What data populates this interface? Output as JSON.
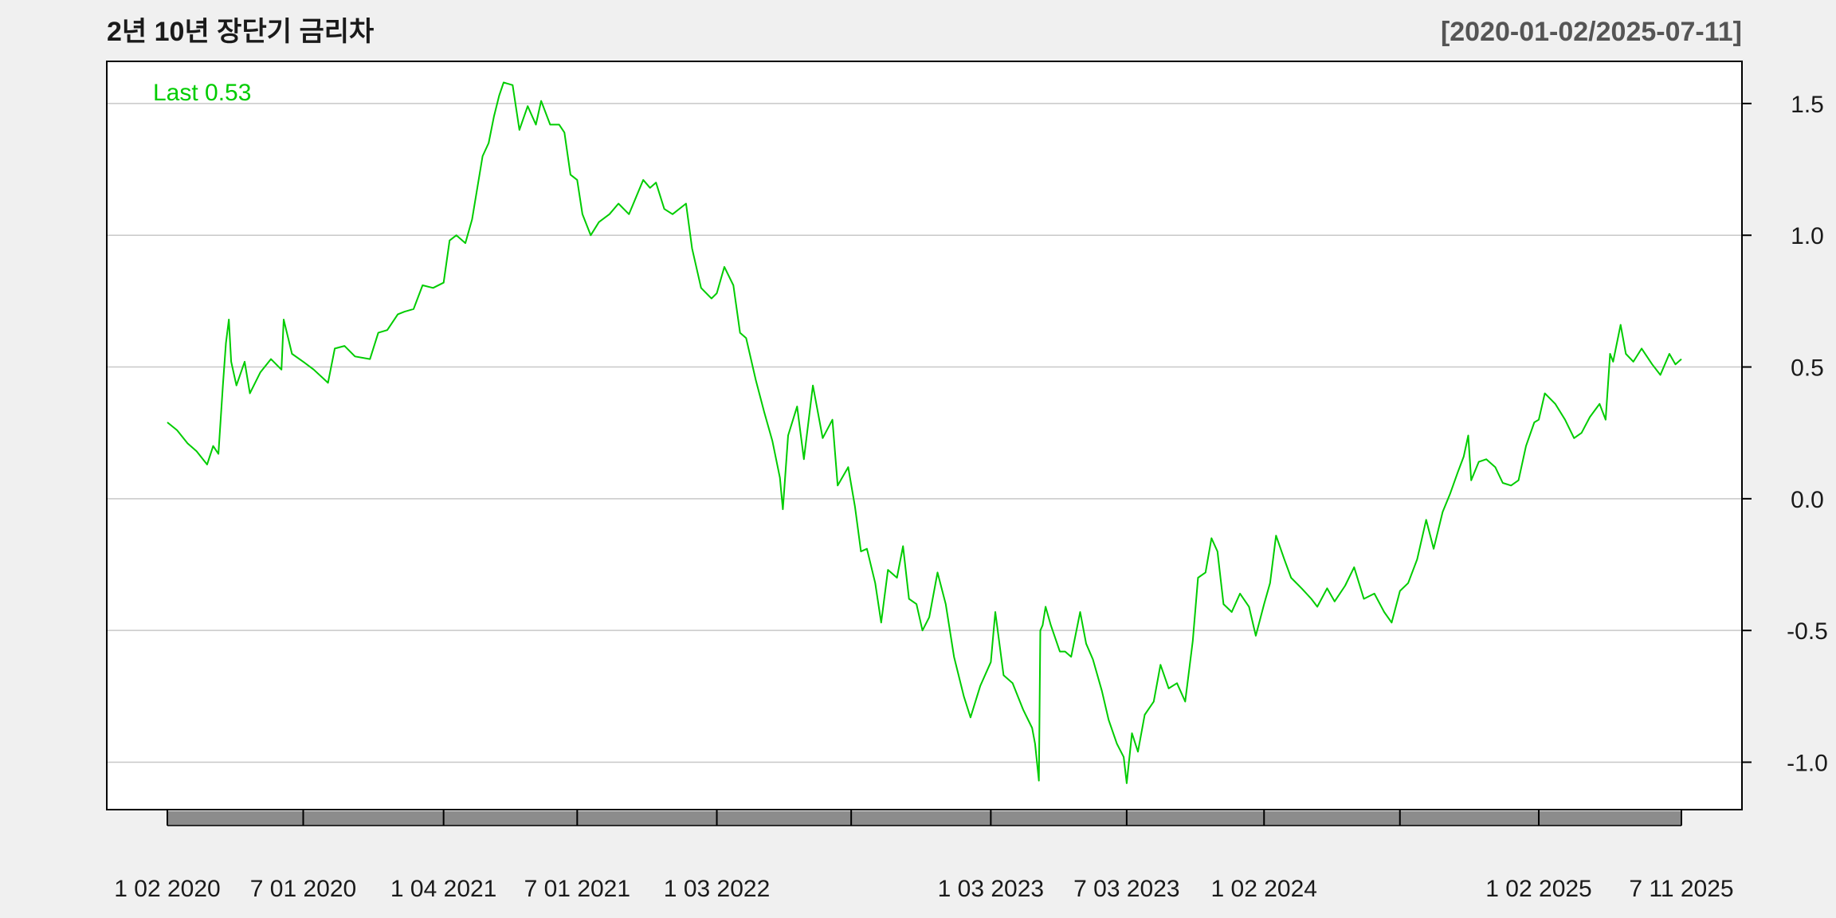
{
  "chart_data": {
    "type": "line",
    "title": "2년 10년 장단기 금리차",
    "date_range_label": "[2020-01-02/2025-07-11]",
    "last_label": "Last 0.53",
    "ylim": [
      -1.18,
      1.66
    ],
    "y_ticks": [
      {
        "value": 1.5,
        "label": "1.5"
      },
      {
        "value": 1.0,
        "label": "1.0"
      },
      {
        "value": 0.5,
        "label": "0.5"
      },
      {
        "value": 0.0,
        "label": "0.0"
      },
      {
        "value": -0.5,
        "label": "-0.5"
      },
      {
        "value": -1.0,
        "label": "-1.0"
      }
    ],
    "grid": true,
    "x_start": "2020-01-02",
    "x_end": "2025-07-11",
    "x_tick_dates": [
      "2020-01-02",
      "2020-07-01",
      "2021-01-04",
      "2021-07-01",
      "2022-01-03",
      "2022-07-01",
      "2023-01-03",
      "2023-07-03",
      "2024-01-02",
      "2024-07-01",
      "2025-01-02",
      "2025-07-11"
    ],
    "x_labels": [
      {
        "date": "2020-01-02",
        "label": "1 02 2020"
      },
      {
        "date": "2020-07-01",
        "label": "7 01 2020"
      },
      {
        "date": "2021-01-04",
        "label": "1 04 2021"
      },
      {
        "date": "2021-07-01",
        "label": "7 01 2021"
      },
      {
        "date": "2022-01-03",
        "label": "1 03 2022"
      },
      {
        "date": "2023-01-03",
        "label": "1 03 2023"
      },
      {
        "date": "2023-07-03",
        "label": "7 03 2023"
      },
      {
        "date": "2024-01-02",
        "label": "1 02 2024"
      },
      {
        "date": "2025-01-02",
        "label": "1 02 2025"
      },
      {
        "date": "2025-07-11",
        "label": "7 11 2025"
      }
    ],
    "colors": {
      "line": "#00cc00",
      "grid": "#c8c8c8",
      "background": "#f0f0f0",
      "plot_background": "#ffffff",
      "axis_band": "#8c8c8c",
      "text": "#1a1a1a",
      "range_text": "#555555"
    },
    "series": [
      {
        "values": [
          [
            "2020-01-02",
            0.29
          ],
          [
            "2020-01-15",
            0.26
          ],
          [
            "2020-01-29",
            0.21
          ],
          [
            "2020-02-10",
            0.18
          ],
          [
            "2020-02-24",
            0.13
          ],
          [
            "2020-03-03",
            0.2
          ],
          [
            "2020-03-10",
            0.17
          ],
          [
            "2020-03-16",
            0.43
          ],
          [
            "2020-03-20",
            0.59
          ],
          [
            "2020-03-24",
            0.68
          ],
          [
            "2020-03-27",
            0.52
          ],
          [
            "2020-04-03",
            0.43
          ],
          [
            "2020-04-14",
            0.52
          ],
          [
            "2020-04-21",
            0.4
          ],
          [
            "2020-05-05",
            0.48
          ],
          [
            "2020-05-19",
            0.53
          ],
          [
            "2020-06-02",
            0.49
          ],
          [
            "2020-06-05",
            0.68
          ],
          [
            "2020-06-16",
            0.55
          ],
          [
            "2020-07-01",
            0.52
          ],
          [
            "2020-07-15",
            0.49
          ],
          [
            "2020-08-03",
            0.44
          ],
          [
            "2020-08-12",
            0.57
          ],
          [
            "2020-08-25",
            0.58
          ],
          [
            "2020-09-08",
            0.54
          ],
          [
            "2020-09-28",
            0.53
          ],
          [
            "2020-10-09",
            0.63
          ],
          [
            "2020-10-21",
            0.64
          ],
          [
            "2020-11-04",
            0.7
          ],
          [
            "2020-11-13",
            0.71
          ],
          [
            "2020-11-25",
            0.72
          ],
          [
            "2020-12-07",
            0.81
          ],
          [
            "2020-12-21",
            0.8
          ],
          [
            "2021-01-04",
            0.82
          ],
          [
            "2021-01-12",
            0.98
          ],
          [
            "2021-01-21",
            1.0
          ],
          [
            "2021-02-02",
            0.97
          ],
          [
            "2021-02-11",
            1.06
          ],
          [
            "2021-02-25",
            1.3
          ],
          [
            "2021-03-05",
            1.35
          ],
          [
            "2021-03-12",
            1.45
          ],
          [
            "2021-03-19",
            1.53
          ],
          [
            "2021-03-25",
            1.58
          ],
          [
            "2021-04-06",
            1.57
          ],
          [
            "2021-04-15",
            1.4
          ],
          [
            "2021-04-26",
            1.49
          ],
          [
            "2021-05-07",
            1.42
          ],
          [
            "2021-05-14",
            1.51
          ],
          [
            "2021-05-26",
            1.42
          ],
          [
            "2021-06-07",
            1.42
          ],
          [
            "2021-06-14",
            1.39
          ],
          [
            "2021-06-22",
            1.23
          ],
          [
            "2021-07-01",
            1.21
          ],
          [
            "2021-07-08",
            1.08
          ],
          [
            "2021-07-19",
            1.0
          ],
          [
            "2021-07-30",
            1.05
          ],
          [
            "2021-08-13",
            1.08
          ],
          [
            "2021-08-25",
            1.12
          ],
          [
            "2021-09-08",
            1.08
          ],
          [
            "2021-09-27",
            1.21
          ],
          [
            "2021-10-06",
            1.18
          ],
          [
            "2021-10-14",
            1.2
          ],
          [
            "2021-10-25",
            1.1
          ],
          [
            "2021-11-05",
            1.08
          ],
          [
            "2021-11-23",
            1.12
          ],
          [
            "2021-12-01",
            0.95
          ],
          [
            "2021-12-13",
            0.8
          ],
          [
            "2021-12-27",
            0.76
          ],
          [
            "2022-01-03",
            0.78
          ],
          [
            "2022-01-13",
            0.88
          ],
          [
            "2022-01-25",
            0.81
          ],
          [
            "2022-02-03",
            0.63
          ],
          [
            "2022-02-11",
            0.61
          ],
          [
            "2022-02-24",
            0.45
          ],
          [
            "2022-03-07",
            0.33
          ],
          [
            "2022-03-18",
            0.22
          ],
          [
            "2022-03-28",
            0.08
          ],
          [
            "2022-04-01",
            -0.04
          ],
          [
            "2022-04-08",
            0.24
          ],
          [
            "2022-04-20",
            0.35
          ],
          [
            "2022-04-29",
            0.15
          ],
          [
            "2022-05-11",
            0.43
          ],
          [
            "2022-05-24",
            0.23
          ],
          [
            "2022-06-06",
            0.3
          ],
          [
            "2022-06-13",
            0.05
          ],
          [
            "2022-06-27",
            0.12
          ],
          [
            "2022-07-06",
            -0.03
          ],
          [
            "2022-07-14",
            -0.2
          ],
          [
            "2022-07-22",
            -0.19
          ],
          [
            "2022-08-02",
            -0.32
          ],
          [
            "2022-08-10",
            -0.47
          ],
          [
            "2022-08-19",
            -0.27
          ],
          [
            "2022-08-31",
            -0.3
          ],
          [
            "2022-09-08",
            -0.18
          ],
          [
            "2022-09-16",
            -0.38
          ],
          [
            "2022-09-26",
            -0.4
          ],
          [
            "2022-10-04",
            -0.5
          ],
          [
            "2022-10-13",
            -0.45
          ],
          [
            "2022-10-24",
            -0.28
          ],
          [
            "2022-11-04",
            -0.4
          ],
          [
            "2022-11-15",
            -0.6
          ],
          [
            "2022-11-28",
            -0.75
          ],
          [
            "2022-12-07",
            -0.83
          ],
          [
            "2022-12-20",
            -0.71
          ],
          [
            "2023-01-03",
            -0.62
          ],
          [
            "2023-01-09",
            -0.43
          ],
          [
            "2023-01-20",
            -0.67
          ],
          [
            "2023-02-01",
            -0.7
          ],
          [
            "2023-02-15",
            -0.8
          ],
          [
            "2023-02-27",
            -0.87
          ],
          [
            "2023-03-03",
            -0.93
          ],
          [
            "2023-03-08",
            -1.07
          ],
          [
            "2023-03-10",
            -0.5
          ],
          [
            "2023-03-13",
            -0.48
          ],
          [
            "2023-03-17",
            -0.41
          ],
          [
            "2023-03-24",
            -0.48
          ],
          [
            "2023-04-05",
            -0.58
          ],
          [
            "2023-04-12",
            -0.58
          ],
          [
            "2023-04-20",
            -0.6
          ],
          [
            "2023-05-02",
            -0.43
          ],
          [
            "2023-05-10",
            -0.55
          ],
          [
            "2023-05-19",
            -0.61
          ],
          [
            "2023-05-31",
            -0.73
          ],
          [
            "2023-06-09",
            -0.84
          ],
          [
            "2023-06-20",
            -0.93
          ],
          [
            "2023-06-29",
            -0.98
          ],
          [
            "2023-07-03",
            -1.08
          ],
          [
            "2023-07-10",
            -0.89
          ],
          [
            "2023-07-18",
            -0.96
          ],
          [
            "2023-07-27",
            -0.82
          ],
          [
            "2023-08-08",
            -0.77
          ],
          [
            "2023-08-17",
            -0.63
          ],
          [
            "2023-08-28",
            -0.72
          ],
          [
            "2023-09-08",
            -0.7
          ],
          [
            "2023-09-19",
            -0.77
          ],
          [
            "2023-09-29",
            -0.54
          ],
          [
            "2023-10-06",
            -0.3
          ],
          [
            "2023-10-16",
            -0.28
          ],
          [
            "2023-10-24",
            -0.15
          ],
          [
            "2023-11-01",
            -0.2
          ],
          [
            "2023-11-09",
            -0.4
          ],
          [
            "2023-11-20",
            -0.43
          ],
          [
            "2023-12-01",
            -0.36
          ],
          [
            "2023-12-13",
            -0.41
          ],
          [
            "2023-12-22",
            -0.52
          ],
          [
            "2024-01-02",
            -0.4
          ],
          [
            "2024-01-10",
            -0.32
          ],
          [
            "2024-01-18",
            -0.14
          ],
          [
            "2024-01-29",
            -0.23
          ],
          [
            "2024-02-07",
            -0.3
          ],
          [
            "2024-02-21",
            -0.34
          ],
          [
            "2024-03-05",
            -0.38
          ],
          [
            "2024-03-13",
            -0.41
          ],
          [
            "2024-03-26",
            -0.34
          ],
          [
            "2024-04-05",
            -0.39
          ],
          [
            "2024-04-19",
            -0.33
          ],
          [
            "2024-05-01",
            -0.26
          ],
          [
            "2024-05-14",
            -0.38
          ],
          [
            "2024-05-28",
            -0.36
          ],
          [
            "2024-06-10",
            -0.43
          ],
          [
            "2024-06-20",
            -0.47
          ],
          [
            "2024-07-01",
            -0.35
          ],
          [
            "2024-07-12",
            -0.32
          ],
          [
            "2024-07-24",
            -0.23
          ],
          [
            "2024-08-05",
            -0.08
          ],
          [
            "2024-08-15",
            -0.19
          ],
          [
            "2024-08-27",
            -0.05
          ],
          [
            "2024-09-06",
            0.02
          ],
          [
            "2024-09-16",
            0.1
          ],
          [
            "2024-09-24",
            0.16
          ],
          [
            "2024-09-30",
            0.24
          ],
          [
            "2024-10-04",
            0.07
          ],
          [
            "2024-10-14",
            0.14
          ],
          [
            "2024-10-24",
            0.15
          ],
          [
            "2024-11-05",
            0.12
          ],
          [
            "2024-11-15",
            0.06
          ],
          [
            "2024-11-26",
            0.05
          ],
          [
            "2024-12-06",
            0.07
          ],
          [
            "2024-12-16",
            0.2
          ],
          [
            "2024-12-27",
            0.29
          ],
          [
            "2025-01-02",
            0.3
          ],
          [
            "2025-01-10",
            0.4
          ],
          [
            "2025-01-24",
            0.36
          ],
          [
            "2025-02-06",
            0.3
          ],
          [
            "2025-02-18",
            0.23
          ],
          [
            "2025-02-28",
            0.25
          ],
          [
            "2025-03-11",
            0.31
          ],
          [
            "2025-03-24",
            0.36
          ],
          [
            "2025-04-01",
            0.3
          ],
          [
            "2025-04-07",
            0.55
          ],
          [
            "2025-04-11",
            0.52
          ],
          [
            "2025-04-21",
            0.66
          ],
          [
            "2025-04-28",
            0.55
          ],
          [
            "2025-05-08",
            0.52
          ],
          [
            "2025-05-19",
            0.57
          ],
          [
            "2025-06-02",
            0.51
          ],
          [
            "2025-06-13",
            0.47
          ],
          [
            "2025-06-25",
            0.55
          ],
          [
            "2025-07-03",
            0.51
          ],
          [
            "2025-07-11",
            0.53
          ]
        ]
      }
    ]
  }
}
